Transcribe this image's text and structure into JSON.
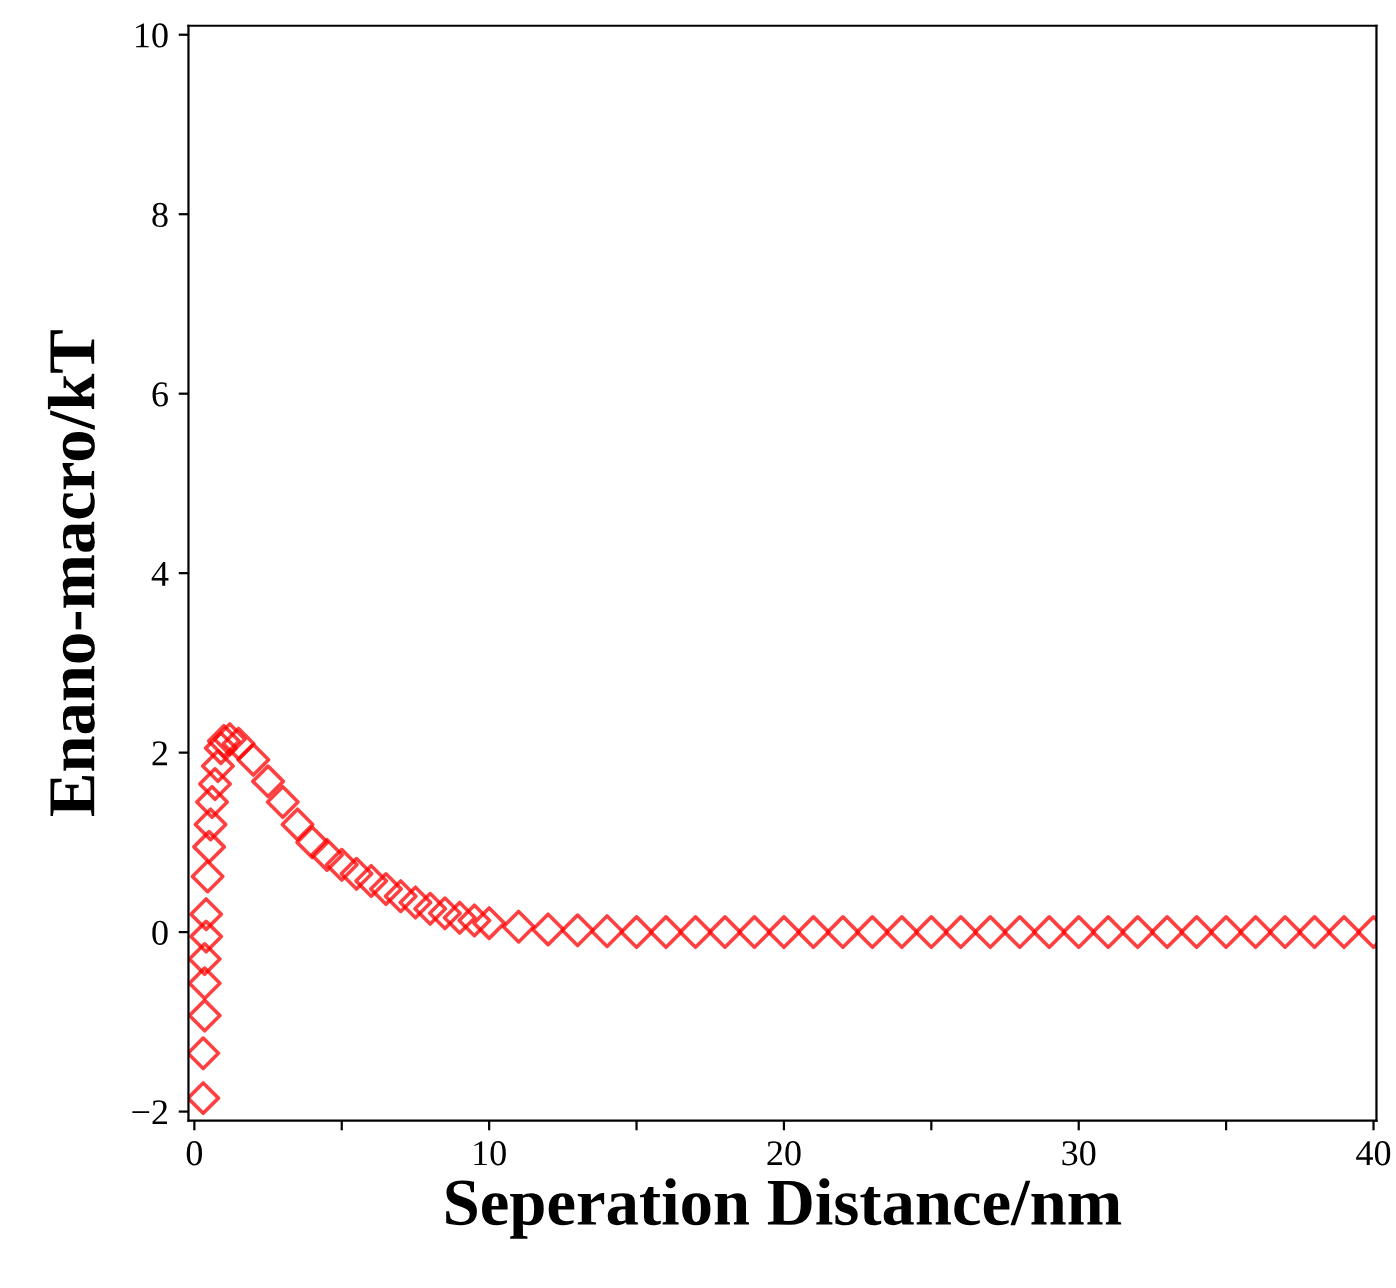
{
  "chart_data": {
    "type": "scatter",
    "xlabel": "Seperation Distance/nm",
    "ylabel": "Enano-macro/kT",
    "marker": "diamond",
    "grid": false,
    "xlim": [
      -0.2,
      40.1
    ],
    "ylim": [
      -2.1,
      10.1
    ],
    "xticks": [
      0,
      {
        "value": 5,
        "label": null
      },
      10,
      {
        "value": 15,
        "label": null
      },
      20,
      {
        "value": 25,
        "label": null
      },
      30,
      {
        "value": 35,
        "label": null
      },
      40
    ],
    "yticks": [
      -2,
      0,
      2,
      4,
      6,
      8,
      10
    ],
    "series": [
      {
        "color": "#ff0000",
        "x": [
          0.3,
          0.3,
          0.35,
          0.35,
          0.35,
          0.4,
          0.4,
          0.45,
          0.5,
          0.55,
          0.6,
          0.7,
          0.8,
          0.9,
          1.0,
          1.2,
          1.5,
          2,
          2.5,
          3,
          3.5,
          4,
          4.5,
          5,
          5.5,
          6,
          6.5,
          7,
          7.5,
          8,
          8.5,
          9,
          9.5,
          10,
          11,
          12,
          13,
          14,
          15,
          16,
          17,
          18,
          19,
          20,
          21,
          22,
          23,
          24,
          25,
          26,
          27,
          28,
          29,
          30,
          31,
          32,
          33,
          34,
          35,
          36,
          37,
          38,
          39,
          40
        ],
        "values": [
          -1.85,
          -1.35,
          -0.93,
          -0.57,
          -0.3,
          -0.05,
          0.2,
          0.62,
          0.95,
          1.2,
          1.45,
          1.65,
          1.85,
          2.05,
          2.13,
          2.15,
          2.1,
          1.92,
          1.68,
          1.45,
          1.2,
          1.0,
          0.86,
          0.75,
          0.65,
          0.57,
          0.48,
          0.4,
          0.33,
          0.26,
          0.21,
          0.16,
          0.13,
          0.1,
          0.06,
          0.03,
          0.02,
          0.01,
          0,
          0,
          0,
          0,
          0,
          0,
          0,
          0,
          0,
          0,
          0,
          0,
          0,
          0,
          0,
          0,
          0,
          0,
          0,
          0,
          0,
          0,
          0,
          0,
          0,
          0
        ]
      }
    ]
  }
}
